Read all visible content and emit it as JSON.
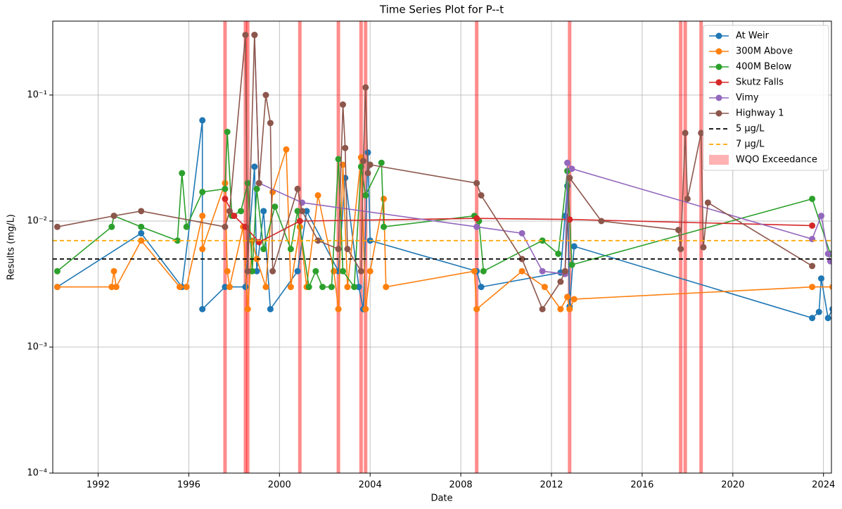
{
  "chart_data": {
    "type": "line",
    "title": "Time Series Plot for P--t",
    "x_label": "Date",
    "y_label": "Results (mg/L)",
    "xlim": [
      1990.0,
      2024.35
    ],
    "xticks": [
      1992,
      1996,
      2000,
      2004,
      2008,
      2012,
      2016,
      2020,
      2024
    ],
    "ylim": [
      0.0001,
      0.386
    ],
    "log_y": true,
    "yticks": [
      {
        "value": 0.0001,
        "label": "10⁻⁴"
      },
      {
        "value": 0.001,
        "label": "10⁻³"
      },
      {
        "value": 0.01,
        "label": "10⁻²"
      },
      {
        "value": 0.1,
        "label": "10⁻¹"
      }
    ],
    "grid": true,
    "legend": "upper right",
    "series": [
      {
        "name": "At Weir",
        "color": "#1f77b4",
        "x": [
          1990.2,
          1993.9,
          1995.7,
          1996.6,
          1996.6,
          1997.6,
          1998.5,
          1998.9,
          1999.0,
          1999.3,
          1999.6,
          2000.8,
          2001.2,
          2002.6,
          2002.9,
          2003.5,
          2003.7,
          2003.9,
          2004.0,
          2008.7,
          2008.9,
          2012.4,
          2012.6,
          2012.7,
          2012.8,
          2013.0,
          2023.5,
          2023.8,
          2023.9,
          2024.2,
          2024.4
        ],
        "values": [
          0.003,
          0.008,
          0.003,
          0.063,
          0.002,
          0.003,
          0.003,
          0.027,
          0.004,
          0.012,
          0.002,
          0.004,
          0.012,
          0.004,
          0.022,
          0.003,
          0.002,
          0.035,
          0.007,
          0.004,
          0.003,
          0.0039,
          0.011,
          0.019,
          0.0021,
          0.0063,
          0.0017,
          0.0019,
          0.0035,
          0.0017,
          0.002
        ]
      },
      {
        "name": "300M Above",
        "color": "#ff7f0e",
        "x": [
          1990.2,
          1992.6,
          1992.7,
          1992.8,
          1993.9,
          1995.6,
          1995.9,
          1996.6,
          1996.6,
          1997.6,
          1997.7,
          1997.8,
          1998.4,
          1998.6,
          1998.8,
          1999.0,
          1999.4,
          1999.7,
          2000.3,
          2000.5,
          2000.9,
          2001.2,
          2001.7,
          2002.4,
          2002.6,
          2002.8,
          2003.0,
          2003.6,
          2003.8,
          2004.0,
          2004.6,
          2004.7,
          2008.6,
          2008.7,
          2010.7,
          2011.7,
          2012.4,
          2012.7,
          2012.8,
          2013.0,
          2023.5,
          2024.4
        ],
        "values": [
          0.003,
          0.003,
          0.004,
          0.003,
          0.007,
          0.003,
          0.003,
          0.011,
          0.006,
          0.02,
          0.004,
          0.003,
          0.009,
          0.002,
          0.007,
          0.005,
          0.003,
          0.017,
          0.037,
          0.003,
          0.009,
          0.003,
          0.016,
          0.004,
          0.002,
          0.028,
          0.003,
          0.032,
          0.002,
          0.004,
          0.015,
          0.003,
          0.004,
          0.002,
          0.004,
          0.003,
          0.002,
          0.0025,
          0.002,
          0.0024,
          0.003,
          0.003
        ]
      },
      {
        "name": "400M Below",
        "color": "#2ca02c",
        "x": [
          1990.2,
          1992.6,
          1992.7,
          1993.9,
          1995.5,
          1995.7,
          1995.9,
          1996.6,
          1997.6,
          1997.7,
          1997.9,
          1998.3,
          1998.6,
          1998.8,
          1999.0,
          1999.3,
          1999.8,
          2000.5,
          2000.8,
          2001.3,
          2001.6,
          2001.9,
          2002.3,
          2002.6,
          2002.8,
          2003.3,
          2003.6,
          2003.8,
          2004.5,
          2004.6,
          2008.6,
          2008.8,
          2009.0,
          2011.6,
          2012.3,
          2012.7,
          2012.9,
          2023.5,
          2024.3
        ],
        "values": [
          0.004,
          0.009,
          0.011,
          0.009,
          0.007,
          0.024,
          0.009,
          0.017,
          0.018,
          0.051,
          0.011,
          0.012,
          0.02,
          0.004,
          0.018,
          0.006,
          0.013,
          0.006,
          0.012,
          0.003,
          0.004,
          0.003,
          0.003,
          0.031,
          0.004,
          0.003,
          0.027,
          0.016,
          0.029,
          0.009,
          0.011,
          0.01,
          0.004,
          0.007,
          0.0055,
          0.025,
          0.0045,
          0.015,
          0.0055
        ]
      },
      {
        "name": "Skutz Falls",
        "color": "#d62728",
        "x": [
          1997.6,
          1998.0,
          1998.5,
          1999.1,
          2000.9,
          2008.7,
          2012.8,
          2023.5
        ],
        "values": [
          0.015,
          0.011,
          0.009,
          0.0068,
          0.01,
          0.0105,
          0.0103,
          0.0092
        ]
      },
      {
        "name": "Vimy",
        "color": "#9467bd",
        "x": [
          1998.9,
          1999.1,
          2001.0,
          2008.7,
          2010.7,
          2011.6,
          2012.6,
          2012.7,
          2012.9,
          2023.5,
          2023.9,
          2024.2,
          2024.3
        ],
        "values": [
          0.3,
          0.02,
          0.014,
          0.009,
          0.008,
          0.004,
          0.0038,
          0.029,
          0.026,
          0.0072,
          0.011,
          0.0055,
          0.0048
        ]
      },
      {
        "name": "Highway 1",
        "color": "#8c564b",
        "x": [
          1990.2,
          1992.7,
          1993.9,
          1997.6,
          1997.8,
          1998.5,
          1998.6,
          1998.9,
          1999.1,
          1999.4,
          1999.6,
          1999.7,
          2000.8,
          2001.0,
          2001.7,
          2002.6,
          2002.8,
          2002.9,
          2003.0,
          2003.6,
          2003.7,
          2003.8,
          2003.9,
          2004.0,
          2008.7,
          2008.9,
          2010.7,
          2011.6,
          2012.4,
          2012.6,
          2012.8,
          2014.2,
          2017.6,
          2017.7,
          2017.9,
          2018.0,
          2018.6,
          2018.7,
          2018.9,
          2023.5
        ],
        "values": [
          0.009,
          0.011,
          0.012,
          0.009,
          0.012,
          0.3,
          0.004,
          0.3,
          0.02,
          0.1,
          0.06,
          0.004,
          0.018,
          0.012,
          0.007,
          0.006,
          0.084,
          0.038,
          0.006,
          0.004,
          0.03,
          0.115,
          0.024,
          0.028,
          0.02,
          0.016,
          0.005,
          0.002,
          0.0033,
          0.004,
          0.022,
          0.01,
          0.0085,
          0.006,
          0.05,
          0.015,
          0.05,
          0.0062,
          0.014,
          0.0044
        ]
      }
    ],
    "reference_lines": [
      {
        "name": "5 µg/L",
        "value": 0.005,
        "color": "#000000"
      },
      {
        "name": "7 µg/L",
        "value": 0.007,
        "color": "#ffa500"
      }
    ],
    "exceedance": {
      "name": "WQO Exceedance",
      "color": "#ff0000",
      "x": [
        1997.6,
        1998.5,
        1998.6,
        2000.9,
        2002.6,
        2003.6,
        2003.8,
        2008.7,
        2012.8,
        2017.7,
        2017.9,
        2018.6
      ]
    }
  }
}
